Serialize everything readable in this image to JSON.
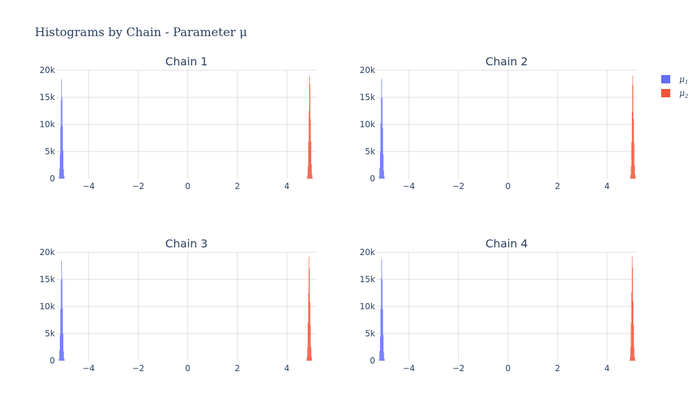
{
  "chart_data": {
    "type": "bar",
    "title": "Histograms by Chain - Parameter μ",
    "x_ticks": [
      -4,
      -2,
      0,
      2,
      4
    ],
    "x_tick_labels": [
      "−4",
      "−2",
      "0",
      "2",
      "4"
    ],
    "xlim": [
      -5.3,
      5.2
    ],
    "y_ticks": [
      0,
      5000,
      10000,
      15000,
      20000
    ],
    "y_tick_labels": [
      "0",
      "5k",
      "10k",
      "15k",
      "20k"
    ],
    "ylim": [
      0,
      20000
    ],
    "grid": true,
    "legend_position": "top-right",
    "legend": [
      {
        "name": "μ1",
        "base": "μ",
        "sub": "1",
        "color": "#636efa"
      },
      {
        "name": "μ2",
        "base": "μ",
        "sub": "2",
        "color": "#ef553b"
      }
    ],
    "subplots": [
      {
        "title": "Chain 1",
        "series": [
          {
            "name": "μ1",
            "color": "#636efa",
            "bin_width": 0.02,
            "x": [
              -5.19,
              -5.17,
              -5.15,
              -5.13,
              -5.11,
              -5.09,
              -5.07,
              -5.05,
              -5.03,
              -5.01,
              -4.99,
              -4.97
            ],
            "values": [
              300,
              1800,
              4500,
              9500,
              14500,
              18300,
              15000,
              9800,
              5200,
              1800,
              500,
              100
            ]
          },
          {
            "name": "μ2",
            "color": "#ef553b",
            "bin_width": 0.02,
            "x": [
              4.81,
              4.83,
              4.85,
              4.87,
              4.89,
              4.91,
              4.93,
              4.95,
              4.97,
              4.99,
              5.01,
              5.03
            ],
            "values": [
              150,
              600,
              2200,
              6800,
              12500,
              19000,
              17500,
              11000,
              6800,
              2600,
              800,
              200
            ]
          }
        ]
      },
      {
        "title": "Chain 2",
        "series": [
          {
            "name": "μ1",
            "color": "#636efa",
            "bin_width": 0.02,
            "x": [
              -5.19,
              -5.17,
              -5.15,
              -5.13,
              -5.11,
              -5.09,
              -5.07,
              -5.05,
              -5.03,
              -5.01,
              -4.99,
              -4.97
            ],
            "values": [
              400,
              2000,
              4800,
              10200,
              15000,
              18400,
              14800,
              9300,
              4500,
              1500,
              400,
              80
            ]
          },
          {
            "name": "μ2",
            "color": "#ef553b",
            "bin_width": 0.02,
            "x": [
              4.93,
              4.95,
              4.97,
              4.99,
              5.01,
              5.03,
              5.05,
              5.07,
              5.09,
              5.11,
              5.13,
              5.15
            ],
            "values": [
              120,
              700,
              2300,
              6700,
              12300,
              19000,
              17300,
              11000,
              6600,
              2400,
              700,
              150
            ]
          }
        ]
      },
      {
        "title": "Chain 3",
        "series": [
          {
            "name": "μ1",
            "color": "#636efa",
            "bin_width": 0.02,
            "x": [
              -5.19,
              -5.17,
              -5.15,
              -5.13,
              -5.11,
              -5.09,
              -5.07,
              -5.05,
              -5.03,
              -5.01,
              -4.99,
              -4.97
            ],
            "values": [
              350,
              1900,
              4700,
              9400,
              14800,
              18400,
              15100,
              9700,
              5000,
              1700,
              450,
              90
            ]
          },
          {
            "name": "μ2",
            "color": "#ef553b",
            "bin_width": 0.02,
            "x": [
              4.79,
              4.81,
              4.83,
              4.85,
              4.87,
              4.89,
              4.91,
              4.93,
              4.95,
              4.97,
              4.99,
              5.01
            ],
            "values": [
              150,
              700,
              2400,
              7000,
              12500,
              19200,
              17000,
              10800,
              6600,
              2500,
              700,
              150
            ]
          }
        ]
      },
      {
        "title": "Chain 4",
        "series": [
          {
            "name": "μ1",
            "color": "#636efa",
            "bin_width": 0.02,
            "x": [
              -5.19,
              -5.17,
              -5.15,
              -5.13,
              -5.11,
              -5.09,
              -5.07,
              -5.05,
              -5.03,
              -5.01,
              -4.99,
              -4.97
            ],
            "values": [
              300,
              1800,
              4400,
              9600,
              15300,
              18700,
              14900,
              9500,
              4800,
              1600,
              400,
              80
            ]
          },
          {
            "name": "μ2",
            "color": "#ef553b",
            "bin_width": 0.02,
            "x": [
              4.91,
              4.93,
              4.95,
              4.97,
              4.99,
              5.01,
              5.03,
              5.05,
              5.07,
              5.09,
              5.11,
              5.13
            ],
            "values": [
              130,
              700,
              2500,
              6900,
              12600,
              19200,
              17200,
              11000,
              6500,
              2400,
              700,
              150
            ]
          }
        ]
      }
    ]
  }
}
